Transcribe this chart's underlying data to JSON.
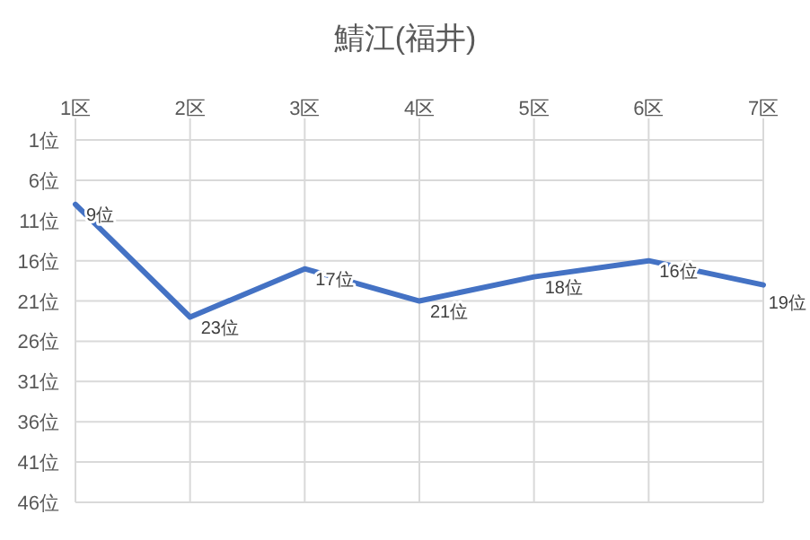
{
  "chart_data": {
    "type": "line",
    "title": "鯖江(福井)",
    "categories": [
      "1区",
      "2区",
      "3区",
      "4区",
      "5区",
      "6区",
      "7区"
    ],
    "series": [
      {
        "color": "#4472c4",
        "values": [
          9,
          23,
          17,
          21,
          18,
          16,
          19
        ],
        "value_labels": [
          "9位",
          "23位",
          "17位",
          "21位",
          "18位",
          "16位",
          "19位"
        ]
      }
    ],
    "ylim": [
      46,
      1
    ],
    "yticks": [
      {
        "value": 1,
        "label": "1位"
      },
      {
        "value": 6,
        "label": "6位"
      },
      {
        "value": 11,
        "label": "11位"
      },
      {
        "value": 16,
        "label": "16位"
      },
      {
        "value": 21,
        "label": "21位"
      },
      {
        "value": 26,
        "label": "26位"
      },
      {
        "value": 31,
        "label": "31位"
      },
      {
        "value": 36,
        "label": "36位"
      },
      {
        "value": 41,
        "label": "41位"
      },
      {
        "value": 46,
        "label": "46位"
      }
    ],
    "grid": true,
    "marker": "none",
    "line_style": "solid"
  }
}
